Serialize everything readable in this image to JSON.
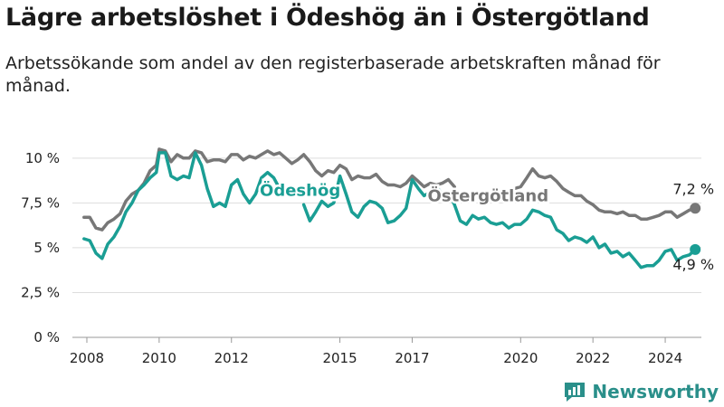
{
  "title": "Lägre arbetslöshet i Ödeshög än i Östergötland",
  "subtitle": "Arbetssökande som andel av den registerbaserade arbetskraften månad för månad.",
  "brand": "Newsworthy",
  "colors": {
    "odeshog": "#1a9e94",
    "ostergotland": "#777777",
    "grid": "#dddddd"
  },
  "chart_data": {
    "type": "line",
    "x_unit": "year",
    "xlim": [
      2007.6,
      2025.0
    ],
    "ylim": [
      0,
      11
    ],
    "y_ticks": [
      0,
      2.5,
      5,
      7.5,
      10
    ],
    "y_tick_labels": [
      "0 %",
      "2,5 %",
      "5 %",
      "7,5 %",
      "10 %"
    ],
    "x_ticks": [
      2008,
      2010,
      2012,
      2015,
      2017,
      2020,
      2022,
      2024
    ],
    "x_tick_labels": [
      "2008",
      "2010",
      "2012",
      "2015",
      "2017",
      "2020",
      "2022",
      "2024"
    ],
    "series": [
      {
        "name": "Östergötland",
        "key": "ostergotland",
        "end_label": "7,2 %",
        "points": [
          [
            2007.92,
            6.7
          ],
          [
            2008.08,
            6.7
          ],
          [
            2008.25,
            6.1
          ],
          [
            2008.42,
            6.0
          ],
          [
            2008.58,
            6.4
          ],
          [
            2008.75,
            6.6
          ],
          [
            2008.92,
            6.9
          ],
          [
            2009.08,
            7.6
          ],
          [
            2009.25,
            8.0
          ],
          [
            2009.42,
            8.2
          ],
          [
            2009.58,
            8.6
          ],
          [
            2009.75,
            9.3
          ],
          [
            2009.92,
            9.6
          ],
          [
            2010.0,
            10.5
          ],
          [
            2010.17,
            10.4
          ],
          [
            2010.33,
            9.8
          ],
          [
            2010.5,
            10.2
          ],
          [
            2010.67,
            10.0
          ],
          [
            2010.83,
            10.0
          ],
          [
            2011.0,
            10.4
          ],
          [
            2011.17,
            10.3
          ],
          [
            2011.33,
            9.8
          ],
          [
            2011.5,
            9.9
          ],
          [
            2011.67,
            9.9
          ],
          [
            2011.83,
            9.8
          ],
          [
            2012.0,
            10.2
          ],
          [
            2012.17,
            10.2
          ],
          [
            2012.33,
            9.9
          ],
          [
            2012.5,
            10.1
          ],
          [
            2012.67,
            10.0
          ],
          [
            2012.83,
            10.2
          ],
          [
            2013.0,
            10.4
          ],
          [
            2013.17,
            10.2
          ],
          [
            2013.33,
            10.3
          ],
          [
            2013.5,
            10.0
          ],
          [
            2013.67,
            9.7
          ],
          [
            2013.83,
            9.9
          ],
          [
            2014.0,
            10.2
          ],
          [
            2014.17,
            9.8
          ],
          [
            2014.33,
            9.3
          ],
          [
            2014.5,
            9.0
          ],
          [
            2014.67,
            9.3
          ],
          [
            2014.83,
            9.2
          ],
          [
            2015.0,
            9.6
          ],
          [
            2015.17,
            9.4
          ],
          [
            2015.33,
            8.8
          ],
          [
            2015.5,
            9.0
          ],
          [
            2015.67,
            8.9
          ],
          [
            2015.83,
            8.9
          ],
          [
            2016.0,
            9.1
          ],
          [
            2016.17,
            8.7
          ],
          [
            2016.33,
            8.5
          ],
          [
            2016.5,
            8.5
          ],
          [
            2016.67,
            8.4
          ],
          [
            2016.83,
            8.6
          ],
          [
            2017.0,
            9.0
          ],
          [
            2017.17,
            8.7
          ],
          [
            2017.33,
            8.4
          ],
          [
            2017.5,
            8.6
          ],
          [
            2017.67,
            8.5
          ],
          [
            2017.83,
            8.6
          ],
          [
            2018.0,
            8.8
          ],
          [
            2018.17,
            8.4
          ],
          [
            2019.83,
            8.3
          ],
          [
            2020.0,
            8.4
          ],
          [
            2020.17,
            8.9
          ],
          [
            2020.33,
            9.4
          ],
          [
            2020.5,
            9.0
          ],
          [
            2020.67,
            8.9
          ],
          [
            2020.83,
            9.0
          ],
          [
            2021.0,
            8.7
          ],
          [
            2021.17,
            8.3
          ],
          [
            2021.33,
            8.1
          ],
          [
            2021.5,
            7.9
          ],
          [
            2021.67,
            7.9
          ],
          [
            2021.83,
            7.6
          ],
          [
            2022.0,
            7.4
          ],
          [
            2022.17,
            7.1
          ],
          [
            2022.33,
            7.0
          ],
          [
            2022.5,
            7.0
          ],
          [
            2022.67,
            6.9
          ],
          [
            2022.83,
            7.0
          ],
          [
            2023.0,
            6.8
          ],
          [
            2023.17,
            6.8
          ],
          [
            2023.33,
            6.6
          ],
          [
            2023.5,
            6.6
          ],
          [
            2023.67,
            6.7
          ],
          [
            2023.83,
            6.8
          ],
          [
            2024.0,
            7.0
          ],
          [
            2024.17,
            7.0
          ],
          [
            2024.33,
            6.7
          ],
          [
            2024.5,
            6.9
          ],
          [
            2024.67,
            7.1
          ],
          [
            2024.83,
            7.2
          ]
        ]
      },
      {
        "name": "Ödeshög",
        "key": "odeshog",
        "end_label": "4,9 %",
        "points": [
          [
            2007.92,
            5.5
          ],
          [
            2008.08,
            5.4
          ],
          [
            2008.25,
            4.7
          ],
          [
            2008.42,
            4.4
          ],
          [
            2008.58,
            5.2
          ],
          [
            2008.75,
            5.6
          ],
          [
            2008.92,
            6.2
          ],
          [
            2009.08,
            7.0
          ],
          [
            2009.25,
            7.5
          ],
          [
            2009.42,
            8.2
          ],
          [
            2009.58,
            8.5
          ],
          [
            2009.75,
            8.9
          ],
          [
            2009.92,
            9.2
          ],
          [
            2010.0,
            10.3
          ],
          [
            2010.17,
            10.3
          ],
          [
            2010.33,
            9.0
          ],
          [
            2010.5,
            8.8
          ],
          [
            2010.67,
            9.0
          ],
          [
            2010.83,
            8.9
          ],
          [
            2011.0,
            10.3
          ],
          [
            2011.17,
            9.6
          ],
          [
            2011.33,
            8.3
          ],
          [
            2011.5,
            7.3
          ],
          [
            2011.67,
            7.5
          ],
          [
            2011.83,
            7.3
          ],
          [
            2012.0,
            8.5
          ],
          [
            2012.17,
            8.8
          ],
          [
            2012.33,
            8.0
          ],
          [
            2012.5,
            7.5
          ],
          [
            2012.67,
            8.0
          ],
          [
            2012.83,
            8.9
          ],
          [
            2013.0,
            9.2
          ],
          [
            2013.17,
            8.9
          ],
          [
            2013.33,
            8.3
          ],
          [
            2014.0,
            7.4
          ],
          [
            2014.17,
            6.5
          ],
          [
            2014.33,
            7.0
          ],
          [
            2014.5,
            7.6
          ],
          [
            2014.67,
            7.3
          ],
          [
            2014.83,
            7.5
          ],
          [
            2015.0,
            9.0
          ],
          [
            2015.17,
            8.0
          ],
          [
            2015.33,
            7.0
          ],
          [
            2015.5,
            6.7
          ],
          [
            2015.67,
            7.3
          ],
          [
            2015.83,
            7.6
          ],
          [
            2016.0,
            7.5
          ],
          [
            2016.17,
            7.2
          ],
          [
            2016.33,
            6.4
          ],
          [
            2016.5,
            6.5
          ],
          [
            2016.67,
            6.8
          ],
          [
            2016.83,
            7.2
          ],
          [
            2017.0,
            8.8
          ],
          [
            2017.17,
            8.3
          ],
          [
            2017.33,
            7.9
          ],
          [
            2017.5,
            8.1
          ],
          [
            2017.67,
            8.4
          ],
          [
            2017.83,
            8.0
          ],
          [
            2018.0,
            8.1
          ],
          [
            2018.17,
            7.4
          ],
          [
            2018.33,
            6.5
          ],
          [
            2018.5,
            6.3
          ],
          [
            2018.67,
            6.8
          ],
          [
            2018.83,
            6.6
          ],
          [
            2019.0,
            6.7
          ],
          [
            2019.17,
            6.4
          ],
          [
            2019.33,
            6.3
          ],
          [
            2019.5,
            6.4
          ],
          [
            2019.67,
            6.1
          ],
          [
            2019.83,
            6.3
          ],
          [
            2020.0,
            6.3
          ],
          [
            2020.17,
            6.6
          ],
          [
            2020.33,
            7.1
          ],
          [
            2020.5,
            7.0
          ],
          [
            2020.67,
            6.8
          ],
          [
            2020.83,
            6.7
          ],
          [
            2021.0,
            6.0
          ],
          [
            2021.17,
            5.8
          ],
          [
            2021.33,
            5.4
          ],
          [
            2021.5,
            5.6
          ],
          [
            2021.67,
            5.5
          ],
          [
            2021.83,
            5.3
          ],
          [
            2022.0,
            5.6
          ],
          [
            2022.17,
            5.0
          ],
          [
            2022.33,
            5.2
          ],
          [
            2022.5,
            4.7
          ],
          [
            2022.67,
            4.8
          ],
          [
            2022.83,
            4.5
          ],
          [
            2023.0,
            4.7
          ],
          [
            2023.17,
            4.3
          ],
          [
            2023.33,
            3.9
          ],
          [
            2023.5,
            4.0
          ],
          [
            2023.67,
            4.0
          ],
          [
            2023.83,
            4.3
          ],
          [
            2024.0,
            4.8
          ],
          [
            2024.17,
            4.9
          ],
          [
            2024.33,
            4.3
          ],
          [
            2024.5,
            4.5
          ],
          [
            2024.67,
            4.6
          ],
          [
            2024.83,
            4.9
          ]
        ]
      }
    ],
    "series_labels": [
      {
        "key": "odeshog",
        "text": "Ödeshög"
      },
      {
        "key": "ostergotland",
        "text": "Östergötland"
      }
    ],
    "grid": true
  }
}
